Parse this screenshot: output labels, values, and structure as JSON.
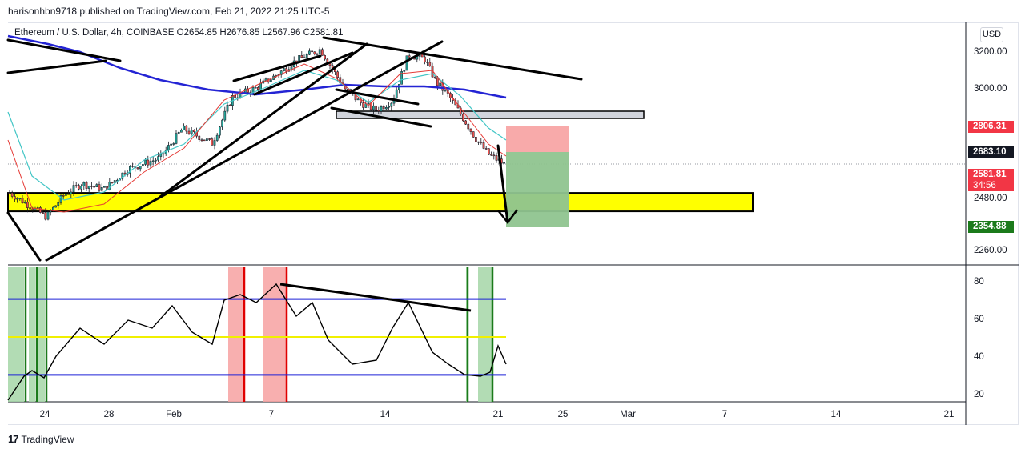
{
  "header": {
    "published": "harisonhbn9718 published on TradingView.com, Feb 21, 2022 21:25 UTC-5"
  },
  "legend": {
    "symbol": "Ethereum / U.S. Dollar, 4h, COINBASE",
    "open": "O2654.85",
    "high": "H2676.85",
    "low": "L2567.96",
    "close": "C2581.81"
  },
  "currency_button": "USD",
  "price_axis": {
    "ticks": [
      "3200.00",
      "3000.00",
      "2480.00",
      "2260.00"
    ]
  },
  "price_tags": [
    {
      "label": "2806.31",
      "color": "#f23645"
    },
    {
      "label": "2683.10",
      "color": "#131722"
    },
    {
      "label": "2581.81",
      "color": "#f23645",
      "sub": "34:56"
    },
    {
      "label": "2354.88",
      "color": "#1b7a1b"
    }
  ],
  "indicator_axis": {
    "ticks": [
      "80",
      "60",
      "40",
      "20"
    ]
  },
  "time_axis": {
    "labels": [
      "24",
      "28",
      "Feb",
      "7",
      "14",
      "21",
      "25",
      "Mar",
      "7",
      "14",
      "21"
    ]
  },
  "watermark": "TradingView",
  "colors": {
    "up": "#26a69a",
    "down": "#ef5350",
    "ma_blue": "#2424d4",
    "ma_teal": "#43c6c6",
    "zone_yellow": "#ffff00"
  },
  "chart_data": {
    "type": "line",
    "title": "Ethereum / U.S. Dollar, 4h, COINBASE",
    "x": [
      "Jan 24",
      "Jan 28",
      "Feb 1",
      "Feb 7",
      "Feb 14",
      "Feb 21"
    ],
    "series": [
      {
        "values": [
          2350,
          2480,
          2780,
          3050,
          3150,
          2581.81
        ]
      }
    ],
    "oscillator": {
      "levels": [
        70,
        50,
        30
      ],
      "range": [
        15,
        85
      ],
      "last": 42
    },
    "ylim": [
      2200,
      3300
    ],
    "zones": {
      "support": [
        2330,
        2430
      ],
      "resistance": [
        2880,
        2920
      ],
      "stop": 2806.31,
      "entry": 2683.1,
      "target": 2354.88
    }
  }
}
